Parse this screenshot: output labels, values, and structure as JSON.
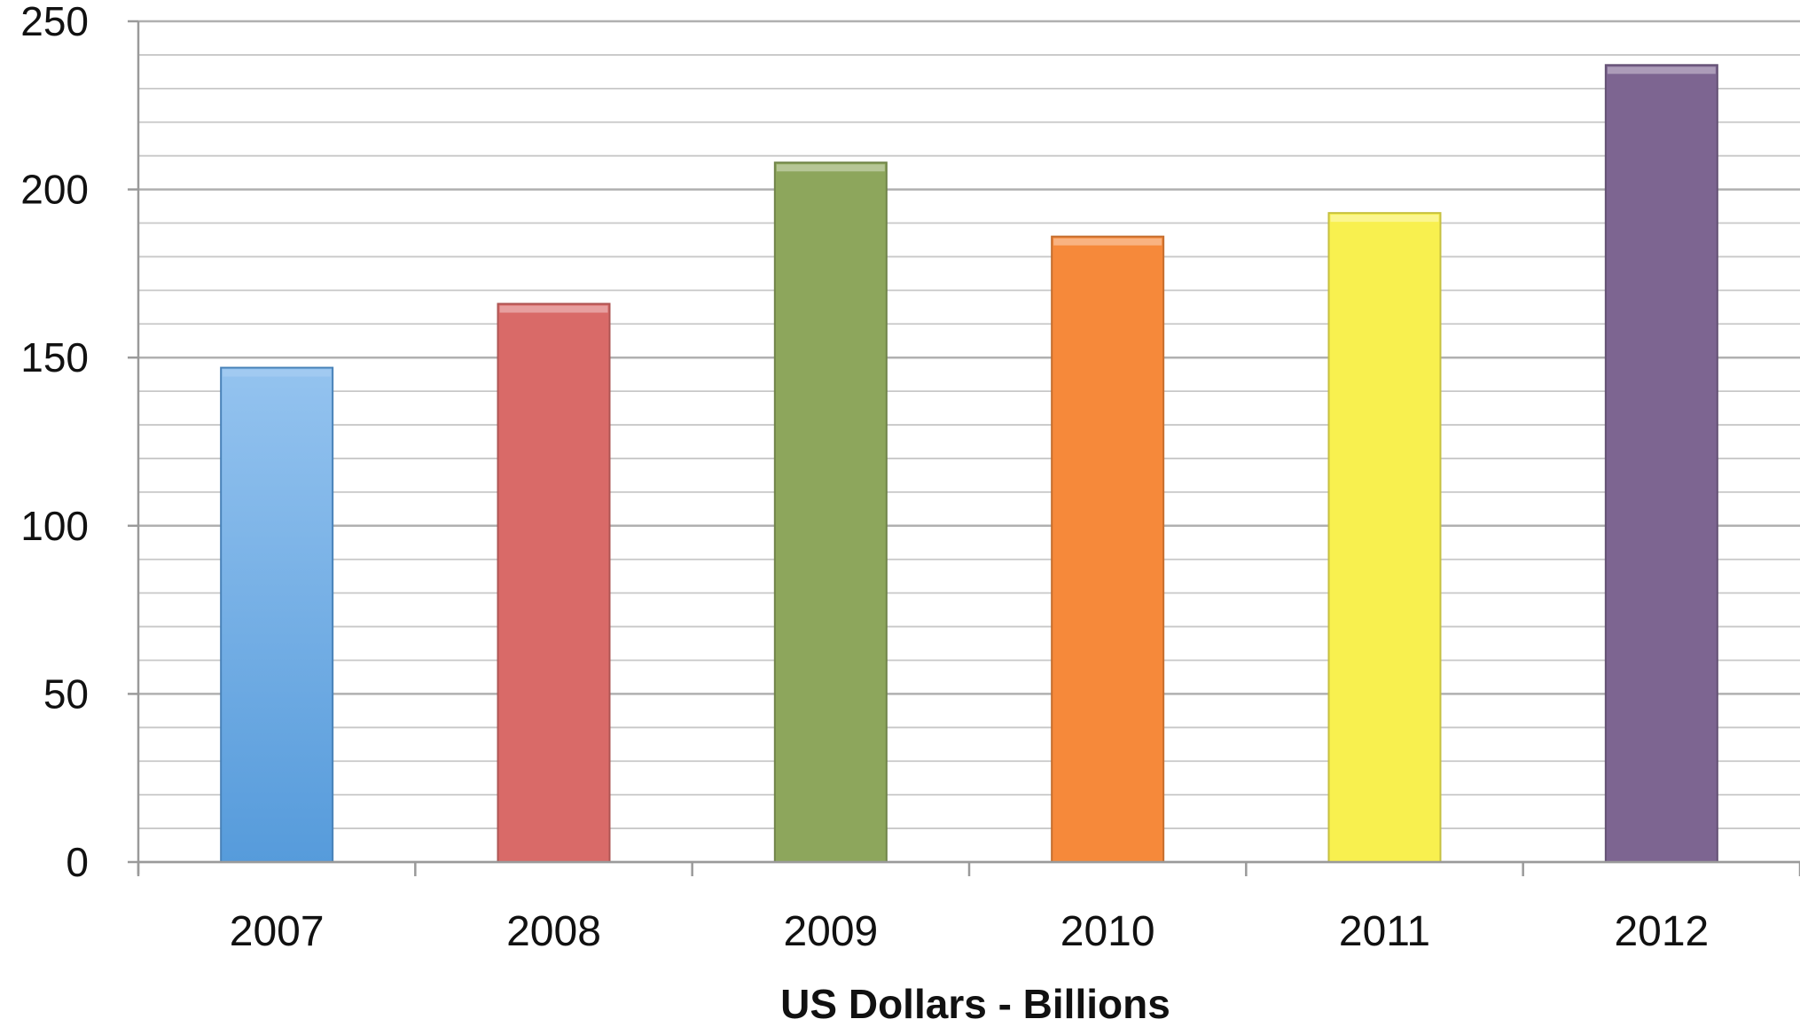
{
  "chart_data": {
    "type": "bar",
    "categories": [
      "2007",
      "2008",
      "2009",
      "2010",
      "2011",
      "2012"
    ],
    "values": [
      147,
      166,
      208,
      186,
      193,
      237
    ],
    "colors": [
      "#5ba3e6",
      "#d96a68",
      "#8da65c",
      "#f6893a",
      "#f8f04f",
      "#7d6591"
    ],
    "title": "",
    "xlabel": "US Dollars - Billions",
    "ylabel": "",
    "ylim": [
      0,
      250
    ],
    "yticks": [
      0,
      50,
      100,
      150,
      200,
      250
    ],
    "minor_gridline_step": 10,
    "grid": true,
    "legend": "none"
  }
}
